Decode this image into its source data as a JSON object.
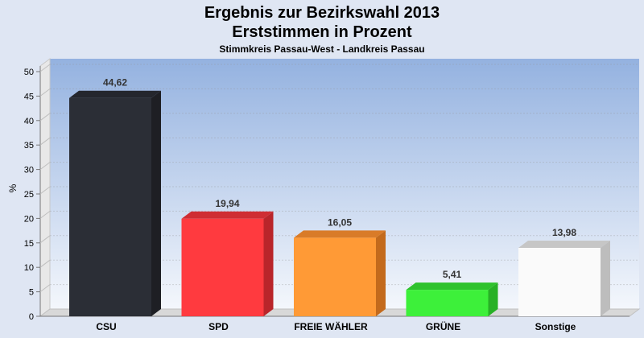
{
  "chart_data": {
    "type": "bar",
    "title": "Ergebnis zur Bezirkswahl 2013",
    "title2": "Erststimmen in Prozent",
    "subtitle": "Stimmkreis Passau-West - Landkreis Passau",
    "ylabel": "%",
    "xlabel": "",
    "ylim": [
      0,
      50
    ],
    "yticks": [
      0,
      5,
      10,
      15,
      20,
      25,
      30,
      35,
      40,
      45,
      50
    ],
    "grid": true,
    "categories": [
      "CSU",
      "SPD",
      "FREIE WÄHLER",
      "GRÜNE",
      "Sonstige"
    ],
    "values": [
      44.62,
      19.94,
      16.05,
      5.41,
      13.98
    ],
    "value_labels": [
      "44,62",
      "19,94",
      "16,05",
      "5,41",
      "13,98"
    ],
    "colors": [
      "#2b2e36",
      "#ff3a3f",
      "#ff9a36",
      "#3df03a",
      "#fafafa"
    ],
    "side_colors": [
      "#1e1f24",
      "#b9252a",
      "#c36a1c",
      "#28b126",
      "#bdbdbd"
    ],
    "top_colors": [
      "#24262d",
      "#cf2d33",
      "#d97b28",
      "#2fc22d",
      "#c6c6c6"
    ],
    "background_gradient": [
      "#94b2e0",
      "#f4f7fc"
    ]
  }
}
